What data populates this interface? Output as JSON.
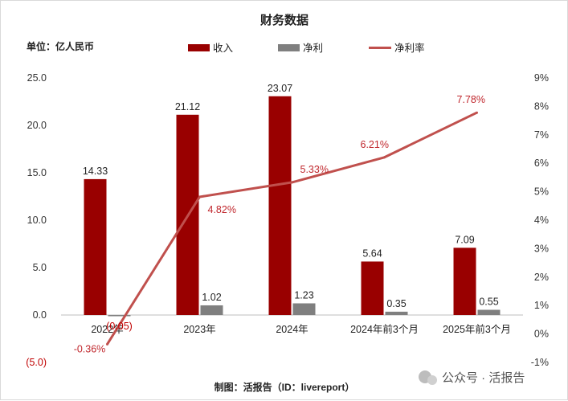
{
  "chart_data": {
    "type": "bar+line",
    "title": "财务数据",
    "unit_label": "单位：亿人民币",
    "categories": [
      "2022年",
      "2023年",
      "2024年",
      "2024年前3个月",
      "2025年前3个月"
    ],
    "series": [
      {
        "name": "收入",
        "kind": "bar",
        "axis": "left",
        "color": "#990000",
        "values": [
          14.33,
          21.12,
          23.07,
          5.64,
          7.09
        ],
        "labels": [
          "14.33",
          "21.12",
          "23.07",
          "5.64",
          "7.09"
        ]
      },
      {
        "name": "净利",
        "kind": "bar",
        "axis": "left",
        "color": "#7f7f7f",
        "values": [
          -0.05,
          1.02,
          1.23,
          0.35,
          0.55
        ],
        "labels": [
          "(0.05)",
          "1.02",
          "1.23",
          "0.35",
          "0.55"
        ]
      },
      {
        "name": "净利率",
        "kind": "line",
        "axis": "right",
        "color": "#c0504d",
        "values": [
          -0.36,
          4.82,
          5.33,
          6.21,
          7.78
        ],
        "labels": [
          "-0.36%",
          "4.82%",
          "5.33%",
          "6.21%",
          "7.78%"
        ]
      }
    ],
    "left_axis": {
      "ylim": [
        -5,
        25
      ],
      "ticks": [
        -5,
        0,
        5,
        10,
        15,
        20,
        25
      ],
      "tick_labels": [
        "(5.0)",
        "0.0",
        "5.0",
        "10.0",
        "15.0",
        "20.0",
        "25.0"
      ]
    },
    "right_axis": {
      "ylim": [
        -1,
        9
      ],
      "ticks": [
        -1,
        0,
        1,
        2,
        3,
        4,
        5,
        6,
        7,
        8,
        9
      ],
      "tick_labels": [
        "-1%",
        "0%",
        "1%",
        "2%",
        "3%",
        "4%",
        "5%",
        "6%",
        "7%",
        "8%",
        "9%"
      ]
    },
    "grid": false,
    "legend": "top-center"
  },
  "footer": {
    "source": "制图：活报告（ID：livereport）",
    "watermark": "公众号 · 活报告"
  }
}
